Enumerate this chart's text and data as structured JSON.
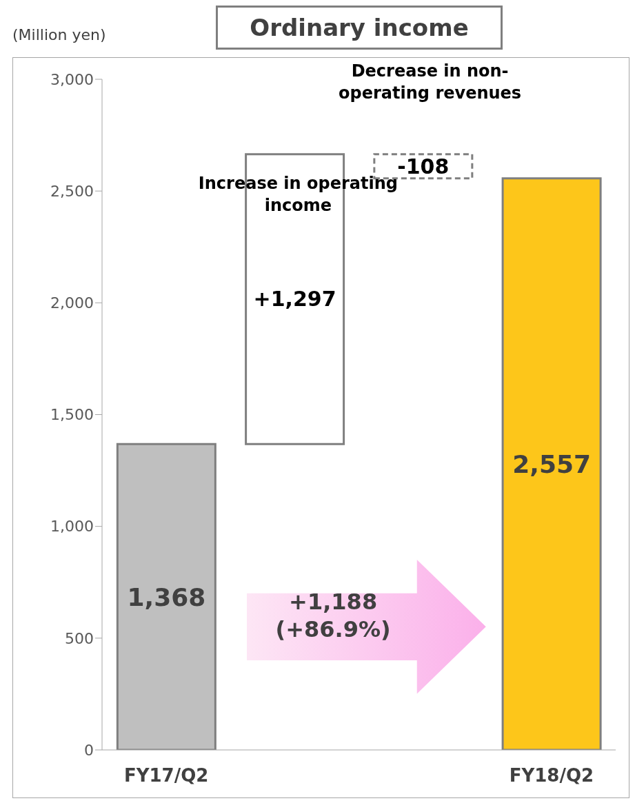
{
  "chart_data": {
    "type": "bar",
    "title": "Ordinary income",
    "ylabel": "(Million yen)",
    "categories": [
      "FY17/Q2",
      null,
      null,
      "FY18/Q2"
    ],
    "values": [
      1368,
      1297,
      -108,
      2557
    ],
    "base": [
      0,
      1368,
      2665,
      0
    ],
    "colors": [
      "#bfbfbf",
      "#ffffff",
      "#ffffff",
      "#fdc61a"
    ],
    "value_labels": [
      "1,368",
      "+1,297",
      "-108",
      "2,557"
    ],
    "ylim": [
      0,
      3000
    ],
    "yticks": [
      {
        "value": 0,
        "label": "0"
      },
      {
        "value": 500,
        "label": "500"
      },
      {
        "value": 1000,
        "label": "1,000"
      },
      {
        "value": 1500,
        "label": "1,500"
      },
      {
        "value": 2000,
        "label": "2,000"
      },
      {
        "value": 2500,
        "label": "2,500"
      },
      {
        "value": 3000,
        "label": "3,000"
      }
    ],
    "annotations": [
      "Increase in operating income",
      "Decrease in non-operating revenues",
      "+1,188 (+86.9%)"
    ],
    "grid": false
  }
}
